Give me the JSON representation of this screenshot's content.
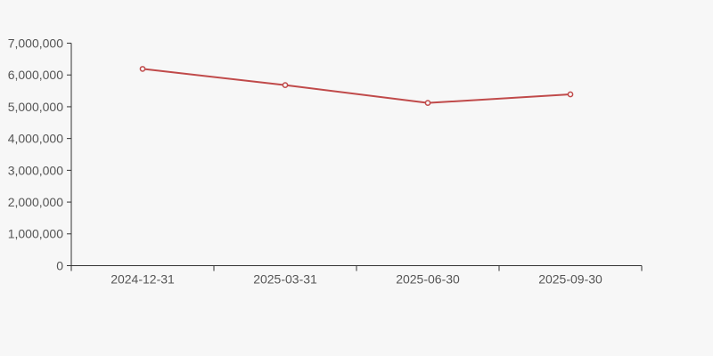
{
  "chart_data": {
    "type": "line",
    "categories": [
      "2024-12-31",
      "2025-03-31",
      "2025-06-30",
      "2025-09-30"
    ],
    "series": [
      {
        "name": "series-1",
        "values": [
          6190000,
          5680000,
          5120000,
          5390000
        ]
      }
    ],
    "title": "",
    "xlabel": "",
    "ylabel": "",
    "ylim": [
      0,
      7000000
    ],
    "y_tick_interval": 1000000,
    "y_tick_labels": [
      "0",
      "1,000,000",
      "2,000,000",
      "3,000,000",
      "4,000,000",
      "5,000,000",
      "6,000,000",
      "7,000,000"
    ],
    "grid": false,
    "legend": false,
    "marker": "empty-circle",
    "colors": {
      "background": "#f7f7f7",
      "line": "#c04a4a",
      "marker_fill": "#f7f7f7",
      "axis": "#333333",
      "tick_label": "#555555"
    }
  }
}
